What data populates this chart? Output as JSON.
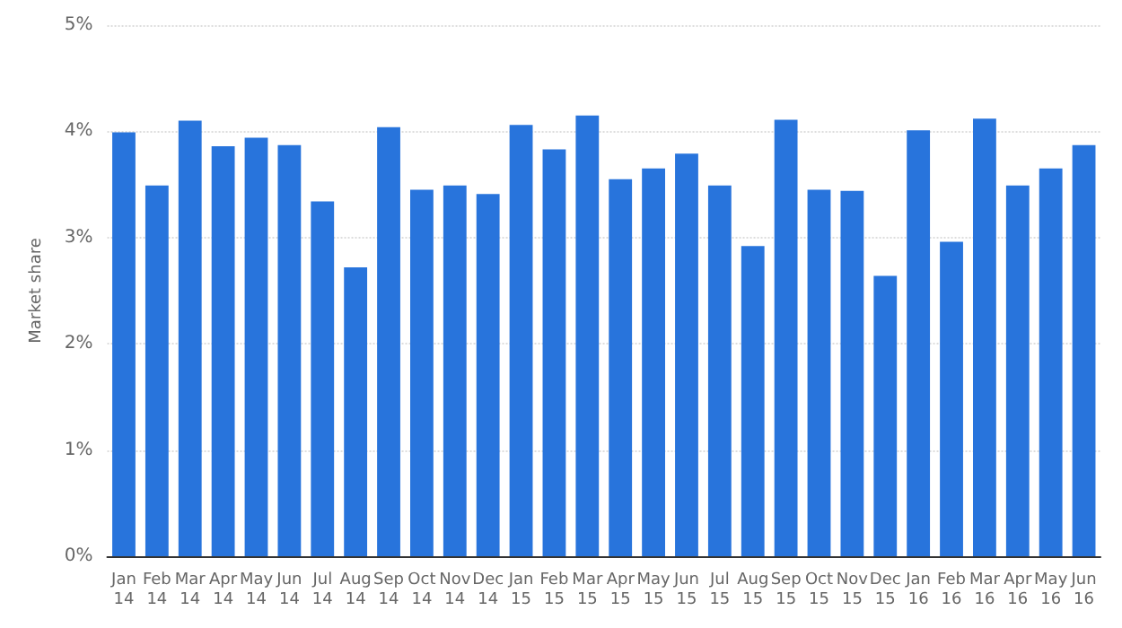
{
  "chart_data": {
    "type": "bar",
    "ylabel": "Market share",
    "categories": [
      "Jan 14",
      "Feb 14",
      "Mar 14",
      "Apr 14",
      "May 14",
      "Jun 14",
      "Jul 14",
      "Aug 14",
      "Sep 14",
      "Oct 14",
      "Nov 14",
      "Dec 14",
      "Jan 15",
      "Feb 15",
      "Mar 15",
      "Apr 15",
      "May 15",
      "Jun 15",
      "Jul 15",
      "Aug 15",
      "Sep 15",
      "Oct 15",
      "Nov 15",
      "Dec 15",
      "Jan 16",
      "Feb 16",
      "Mar 16",
      "Apr 16",
      "May 16",
      "Jun 16"
    ],
    "values": [
      3.99,
      3.49,
      4.1,
      3.86,
      3.94,
      3.87,
      3.34,
      2.72,
      4.04,
      3.45,
      3.49,
      3.41,
      4.06,
      3.83,
      4.15,
      3.55,
      3.65,
      3.79,
      3.49,
      2.92,
      4.11,
      3.45,
      3.44,
      2.64,
      4.01,
      2.96,
      4.12,
      3.49,
      3.65,
      3.87
    ],
    "color": "#2874dc",
    "ylim": [
      0,
      5
    ],
    "yticks": [
      {
        "value": 0,
        "label": "0%"
      },
      {
        "value": 1,
        "label": "1%"
      },
      {
        "value": 2,
        "label": "2%"
      },
      {
        "value": 3,
        "label": "3%"
      },
      {
        "value": 4,
        "label": "4%"
      },
      {
        "value": 5,
        "label": "5%"
      }
    ],
    "grid": "y"
  }
}
